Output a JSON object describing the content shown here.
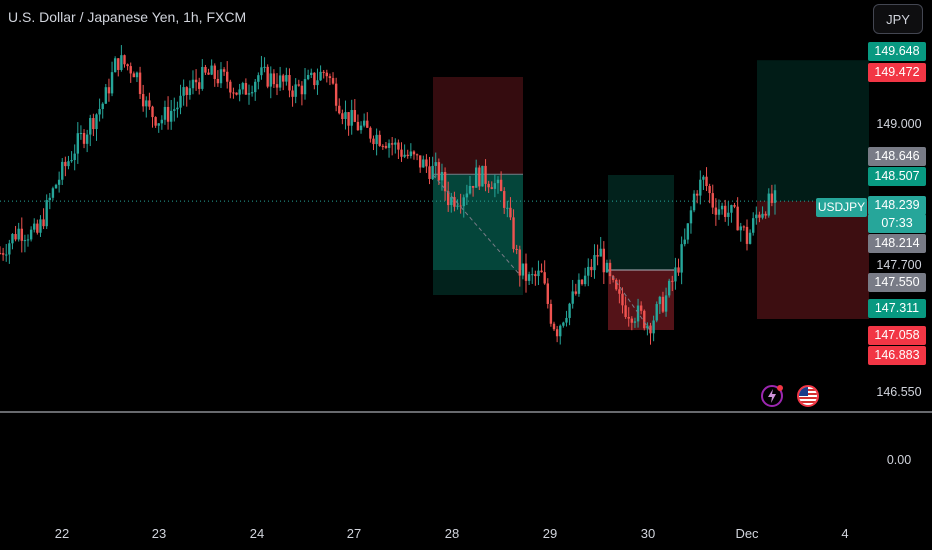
{
  "header": {
    "title": "U.S. Dollar / Japanese Yen, 1h, FXCM",
    "currency_button": "JPY"
  },
  "symbol_tag": "USDJPY",
  "price_labels": [
    {
      "text": "149.648",
      "color": "#089981"
    },
    {
      "text": "149.472",
      "color": "#f23645"
    },
    {
      "text": "148.646",
      "color": "#787b86"
    },
    {
      "text": "148.507",
      "color": "#089981"
    },
    {
      "text": "148.239",
      "color": "#26a69a"
    },
    {
      "text": "07:33",
      "color": "#26a69a"
    },
    {
      "text": "148.214",
      "color": "#787b86"
    },
    {
      "text": "147.550",
      "color": "#787b86"
    },
    {
      "text": "147.311",
      "color": "#089981"
    },
    {
      "text": "147.058",
      "color": "#f23645"
    },
    {
      "text": "146.883",
      "color": "#f23645"
    }
  ],
  "axis_labels": [
    "149.000",
    "147.700",
    "146.550",
    "0.00"
  ],
  "icons": [
    "lightning-icon",
    "us-flag-icon"
  ],
  "chart_data": {
    "type": "candlestick",
    "symbol": "USDJPY",
    "timeframe": "1h",
    "x_tick_labels": [
      "22",
      "23",
      "24",
      "27",
      "28",
      "29",
      "30",
      "Dec",
      "4"
    ],
    "y_range": [
      146.45,
      149.85
    ],
    "last_price": 148.239,
    "close_path": [
      [
        0,
        147.72
      ],
      [
        0.3,
        147.95
      ],
      [
        0.6,
        147.9
      ],
      [
        0.9,
        148.4
      ],
      [
        1.2,
        148.75
      ],
      [
        1.4,
        148.95
      ],
      [
        1.7,
        149.25
      ],
      [
        1.9,
        149.65
      ],
      [
        2.2,
        149.55
      ],
      [
        2.4,
        149.15
      ],
      [
        2.6,
        149.05
      ],
      [
        2.9,
        149.2
      ],
      [
        3.2,
        149.45
      ],
      [
        3.4,
        149.5
      ],
      [
        3.7,
        149.45
      ],
      [
        3.9,
        149.3
      ],
      [
        4.2,
        149.5
      ],
      [
        4.5,
        149.45
      ],
      [
        4.8,
        149.35
      ],
      [
        5.1,
        149.45
      ],
      [
        5.3,
        149.55
      ],
      [
        5.6,
        149.1
      ],
      [
        5.9,
        148.95
      ],
      [
        6.3,
        148.85
      ],
      [
        6.6,
        148.7
      ],
      [
        6.9,
        148.6
      ],
      [
        7.15,
        148.5
      ],
      [
        7.3,
        148.25
      ],
      [
        7.5,
        148.3
      ],
      [
        7.75,
        148.5
      ],
      [
        8.0,
        148.45
      ],
      [
        8.2,
        148.25
      ],
      [
        8.45,
        147.55
      ],
      [
        8.6,
        147.45
      ],
      [
        8.8,
        147.5
      ],
      [
        8.95,
        147.1
      ],
      [
        9.05,
        146.95
      ],
      [
        9.2,
        147.15
      ],
      [
        9.35,
        147.3
      ],
      [
        9.55,
        147.5
      ],
      [
        9.75,
        147.75
      ],
      [
        9.9,
        147.45
      ],
      [
        10.05,
        147.25
      ],
      [
        10.2,
        147.15
      ],
      [
        10.4,
        147.1
      ],
      [
        10.55,
        147.0
      ],
      [
        10.7,
        147.15
      ],
      [
        10.85,
        147.3
      ],
      [
        11.0,
        147.55
      ],
      [
        11.15,
        147.85
      ],
      [
        11.3,
        148.35
      ],
      [
        11.45,
        148.45
      ],
      [
        11.6,
        148.2
      ],
      [
        11.8,
        148.15
      ],
      [
        12.0,
        148.05
      ],
      [
        12.15,
        147.85
      ],
      [
        12.3,
        148.1
      ],
      [
        12.45,
        148.2
      ],
      [
        12.6,
        148.24
      ]
    ],
    "positions": [
      {
        "type": "short",
        "x_range": [
          8.4,
          8.95
        ],
        "entry": 148.507,
        "stop": 149.48,
        "target": 147.31
      },
      {
        "type": "long",
        "x_range": [
          8.4,
          8.95
        ],
        "entry": 148.507,
        "stop": 147.3,
        "target": 148.507
      },
      {
        "type": "long",
        "x_range": [
          10.1,
          10.5
        ],
        "entry": 147.55,
        "stop": 146.95,
        "target": 148.5
      },
      {
        "type": "long",
        "x_range": [
          12.4,
          13.1
        ],
        "entry": 148.239,
        "stop": 147.06,
        "target": 149.648
      }
    ],
    "dotted_line": 148.239,
    "grid": false
  }
}
